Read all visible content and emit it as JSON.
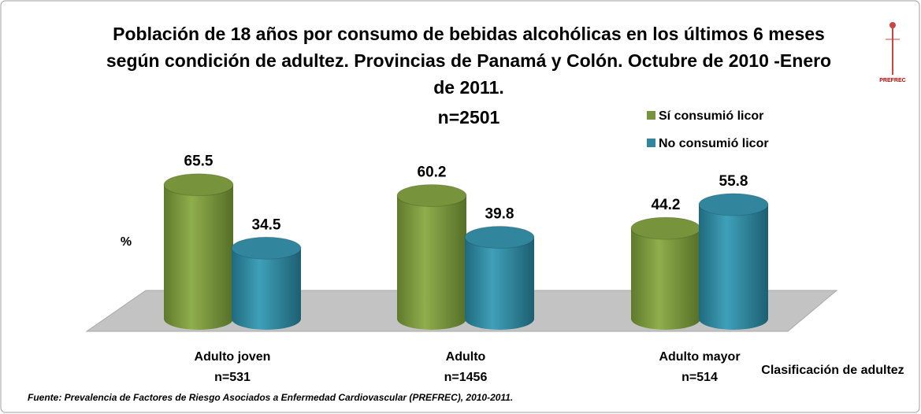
{
  "chart_data": {
    "type": "bar3d",
    "title": "Población de 18 años por consumo de bebidas alcohólicas en los últimos 6 meses según condición de adultez. Provincias de Panamá y Colón. Octubre de 2010 -Enero de 2011.",
    "subtitle": "n=2501",
    "y_label": "%",
    "x_label": "Clasificación de adultez",
    "categories": [
      "Adulto joven",
      "Adulto",
      "Adulto mayor"
    ],
    "category_counts": [
      "n=531",
      "n=1456",
      "n=514"
    ],
    "series": [
      {
        "name": "Sí consumió licor",
        "color": "#77933c",
        "values": [
          65.5,
          60.2,
          44.2
        ]
      },
      {
        "name": "No consumió licor",
        "color": "#31859c",
        "values": [
          34.5,
          39.8,
          55.8
        ]
      }
    ],
    "ylim": [
      0,
      70
    ],
    "source": "Fuente: Prevalencia de Factores de Riesgo Asociados a Enfermedad Cardiovascular (PREFREC), 2010-2011.",
    "logo_text": "PREFREC"
  }
}
